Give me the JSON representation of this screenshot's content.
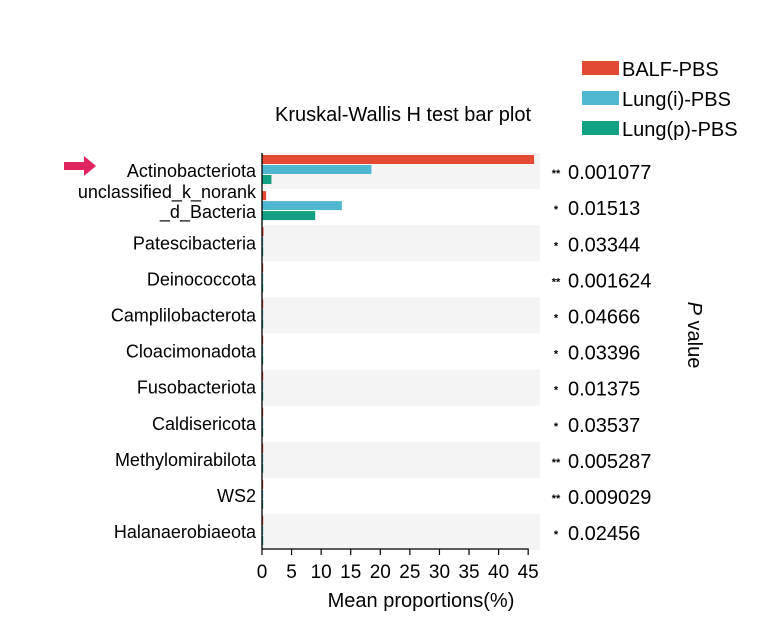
{
  "chart_data": {
    "type": "bar",
    "orientation": "horizontal",
    "title": "Kruskal-Wallis H test bar plot",
    "xlabel": "Mean proportions(%)",
    "right_axis_label": "P value",
    "right_axis_label_italic": "P",
    "right_axis_label_rest": " value",
    "xlim": [
      0,
      47
    ],
    "xticks": [
      0,
      5,
      10,
      15,
      20,
      25,
      30,
      35,
      40,
      45
    ],
    "grid": false,
    "legend_position": "top-right",
    "highlighted_category": "Actinobacteriota",
    "categories": [
      "Actinobacteriota",
      "unclassified_k_norank_d_Bacteria",
      "Patescibacteria",
      "Deinococcota",
      "Camplilobacterota",
      "Cloacimonadota",
      "Fusobacteriota",
      "Caldisericota",
      "Methylomirabilota",
      "WS2",
      "Halanaerobiaeota"
    ],
    "category_label_lines": [
      [
        "Actinobacteriota"
      ],
      [
        "unclassified_k_norank",
        "_d_Bacteria"
      ],
      [
        "Patescibacteria"
      ],
      [
        "Deinococcota"
      ],
      [
        "Camplilobacterota"
      ],
      [
        "Cloacimonadota"
      ],
      [
        "Fusobacteriota"
      ],
      [
        "Caldisericota"
      ],
      [
        "Methylomirabilota"
      ],
      [
        "WS2"
      ],
      [
        "Halanaerobiaeota"
      ]
    ],
    "series": [
      {
        "name": "BALF-PBS",
        "color": "#e34a33",
        "values": [
          46.0,
          0.7,
          0.25,
          0.12,
          0.2,
          0.12,
          0.15,
          0.1,
          0.15,
          0.05,
          0.1
        ]
      },
      {
        "name": "Lung(i)-PBS",
        "color": "#4fb8d0",
        "values": [
          18.5,
          13.5,
          0.15,
          0.2,
          0.1,
          0.08,
          0.05,
          0.08,
          0.05,
          0.05,
          0.05
        ]
      },
      {
        "name": "Lung(p)-PBS",
        "color": "#13a084",
        "values": [
          1.6,
          9.0,
          0.1,
          0.05,
          0.05,
          0.05,
          0.05,
          0.05,
          0.05,
          0.05,
          0.05
        ]
      }
    ],
    "significance": [
      "**",
      "*",
      "*",
      "**",
      "*",
      "*",
      "*",
      "*",
      "**",
      "**",
      "*"
    ],
    "p_values": [
      "0.001077",
      "0.01513",
      "0.03344",
      "0.001624",
      "0.04666",
      "0.03396",
      "0.01375",
      "0.03537",
      "0.005287",
      "0.009029",
      "0.02456"
    ],
    "colors": {
      "row_band": "#f4f4f4",
      "arrow": "#e0245e"
    }
  }
}
